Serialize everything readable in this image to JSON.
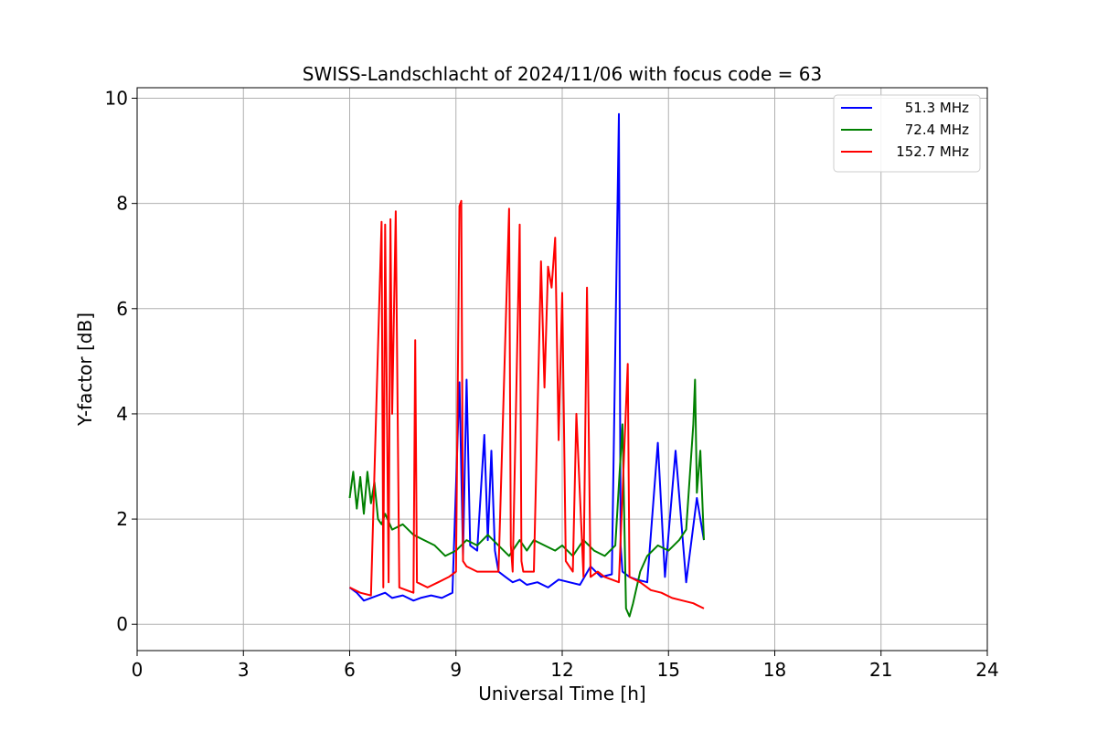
{
  "chart_data": {
    "type": "line",
    "title": "SWISS-Landschlacht of 2024/11/06 with focus code = 63",
    "xlabel": "Universal Time [h]",
    "ylabel": "Y-factor [dB]",
    "xlim": [
      0,
      24
    ],
    "ylim": [
      -0.5,
      10.2
    ],
    "xticks": [
      0,
      3,
      6,
      9,
      12,
      15,
      18,
      21,
      24
    ],
    "yticks": [
      0,
      2,
      4,
      6,
      8,
      10
    ],
    "grid": true,
    "legend_position": "top-right",
    "series": [
      {
        "name": "51.3 MHz",
        "color": "#0000ff",
        "x": [
          6.0,
          6.2,
          6.4,
          6.6,
          6.8,
          7.0,
          7.2,
          7.5,
          7.8,
          8.0,
          8.3,
          8.6,
          8.9,
          9.1,
          9.2,
          9.3,
          9.4,
          9.6,
          9.8,
          9.9,
          10.0,
          10.1,
          10.2,
          10.4,
          10.6,
          10.8,
          11.0,
          11.3,
          11.6,
          11.9,
          12.2,
          12.5,
          12.8,
          13.1,
          13.4,
          13.6,
          13.65,
          13.7,
          13.9,
          14.1,
          14.4,
          14.7,
          14.9,
          15.2,
          15.5,
          15.8,
          16.0
        ],
        "y": [
          0.7,
          0.6,
          0.45,
          0.5,
          0.55,
          0.6,
          0.5,
          0.55,
          0.45,
          0.5,
          0.55,
          0.5,
          0.6,
          4.6,
          1.3,
          4.65,
          1.5,
          1.4,
          3.6,
          1.6,
          3.3,
          1.4,
          1.0,
          0.9,
          0.8,
          0.85,
          0.75,
          0.8,
          0.7,
          0.85,
          0.8,
          0.75,
          1.1,
          0.9,
          0.95,
          9.7,
          1.5,
          1.0,
          0.9,
          0.85,
          0.8,
          3.45,
          0.9,
          3.3,
          0.8,
          2.4,
          1.6
        ]
      },
      {
        "name": "72.4 MHz",
        "color": "#008000",
        "x": [
          6.0,
          6.1,
          6.2,
          6.3,
          6.4,
          6.5,
          6.6,
          6.7,
          6.8,
          6.9,
          7.0,
          7.2,
          7.5,
          7.8,
          8.1,
          8.4,
          8.7,
          9.0,
          9.3,
          9.6,
          9.9,
          10.2,
          10.5,
          10.8,
          11.0,
          11.2,
          11.5,
          11.8,
          12.0,
          12.3,
          12.6,
          12.9,
          13.2,
          13.5,
          13.7,
          13.8,
          13.9,
          14.0,
          14.2,
          14.4,
          14.7,
          15.0,
          15.3,
          15.5,
          15.7,
          15.75,
          15.8,
          15.9,
          16.0
        ],
        "y": [
          2.4,
          2.9,
          2.2,
          2.8,
          2.1,
          2.9,
          2.3,
          2.7,
          2.0,
          1.9,
          2.1,
          1.8,
          1.9,
          1.7,
          1.6,
          1.5,
          1.3,
          1.4,
          1.6,
          1.5,
          1.7,
          1.5,
          1.3,
          1.6,
          1.4,
          1.6,
          1.5,
          1.4,
          1.5,
          1.3,
          1.6,
          1.4,
          1.3,
          1.5,
          3.8,
          0.3,
          0.15,
          0.4,
          1.0,
          1.3,
          1.5,
          1.4,
          1.6,
          1.8,
          3.8,
          4.65,
          2.5,
          3.3,
          1.6
        ]
      },
      {
        "name": "152.7 MHz",
        "color": "#ff0000",
        "x": [
          6.0,
          6.3,
          6.6,
          6.9,
          6.95,
          7.0,
          7.1,
          7.15,
          7.2,
          7.3,
          7.4,
          7.6,
          7.8,
          7.85,
          7.9,
          8.2,
          8.5,
          8.8,
          9.0,
          9.1,
          9.15,
          9.2,
          9.3,
          9.6,
          9.9,
          10.2,
          10.5,
          10.55,
          10.6,
          10.8,
          10.85,
          10.9,
          11.2,
          11.4,
          11.5,
          11.6,
          11.7,
          11.8,
          11.9,
          12.0,
          12.1,
          12.3,
          12.4,
          12.6,
          12.7,
          12.8,
          13.0,
          13.2,
          13.4,
          13.6,
          13.85,
          13.9,
          14.2,
          14.5,
          14.8,
          15.1,
          15.4,
          15.7,
          16.0
        ],
        "y": [
          0.7,
          0.6,
          0.55,
          7.65,
          0.7,
          7.6,
          0.8,
          7.7,
          4.0,
          7.85,
          0.7,
          0.65,
          0.6,
          5.4,
          0.8,
          0.7,
          0.8,
          0.9,
          1.0,
          7.95,
          8.05,
          1.2,
          1.1,
          1.0,
          1.0,
          1.0,
          7.9,
          1.5,
          1.0,
          7.6,
          1.2,
          1.0,
          1.0,
          6.9,
          4.5,
          6.8,
          6.4,
          7.35,
          3.5,
          6.3,
          1.2,
          1.0,
          4.0,
          0.9,
          6.4,
          0.9,
          1.0,
          0.9,
          0.85,
          0.8,
          4.95,
          0.9,
          0.8,
          0.65,
          0.6,
          0.5,
          0.45,
          0.4,
          0.3
        ]
      }
    ]
  }
}
